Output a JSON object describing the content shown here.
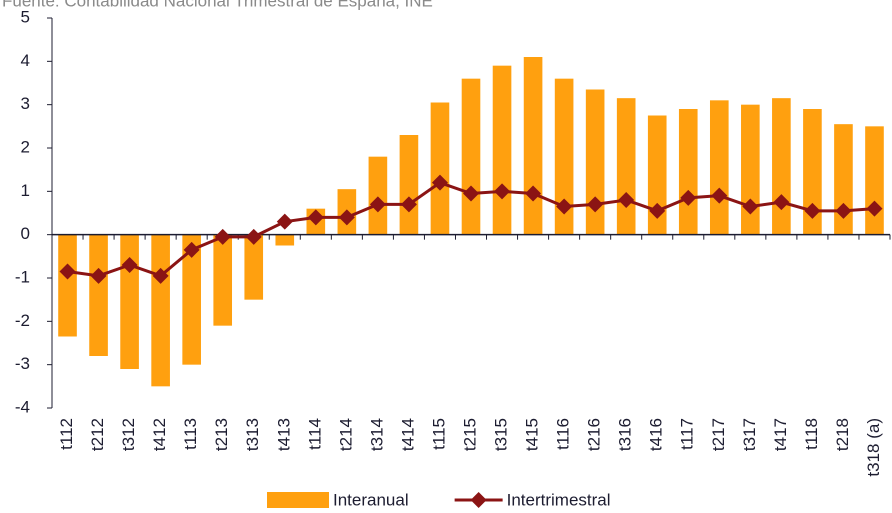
{
  "chart_data": {
    "type": "bar-line",
    "source": "Fuente: Contabilidad Nacional Trimestral de España, INE",
    "categories": [
      "t112",
      "t212",
      "t312",
      "t412",
      "t113",
      "t213",
      "t313",
      "t413",
      "t114",
      "t214",
      "t314",
      "t414",
      "t115",
      "t215",
      "t315",
      "t415",
      "t116",
      "t216",
      "t316",
      "t416",
      "t117",
      "t217",
      "t317",
      "t417",
      "t118",
      "t218",
      "t318 (a)"
    ],
    "series": [
      {
        "name": "Interanual",
        "type": "bar",
        "color": "#ffa00f",
        "values": [
          -2.35,
          -2.8,
          -3.1,
          -3.5,
          -3.0,
          -2.1,
          -1.5,
          -0.25,
          0.6,
          1.05,
          1.8,
          2.3,
          3.05,
          3.6,
          3.9,
          4.1,
          3.6,
          3.35,
          3.15,
          2.75,
          2.9,
          3.1,
          3.0,
          3.15,
          2.9,
          2.55,
          2.5
        ]
      },
      {
        "name": "Intertrimestral",
        "type": "line",
        "color": "#8b1414",
        "values": [
          -0.85,
          -0.95,
          -0.7,
          -0.95,
          -0.35,
          -0.05,
          -0.05,
          0.3,
          0.4,
          0.4,
          0.7,
          0.7,
          1.2,
          0.95,
          1.0,
          0.95,
          0.65,
          0.7,
          0.8,
          0.55,
          0.85,
          0.9,
          0.65,
          0.75,
          0.55,
          0.55,
          0.6
        ]
      }
    ],
    "ylim": [
      -4,
      5
    ],
    "yticks": [
      -4,
      -3,
      -2,
      -1,
      0,
      1,
      2,
      3,
      4,
      5
    ]
  }
}
